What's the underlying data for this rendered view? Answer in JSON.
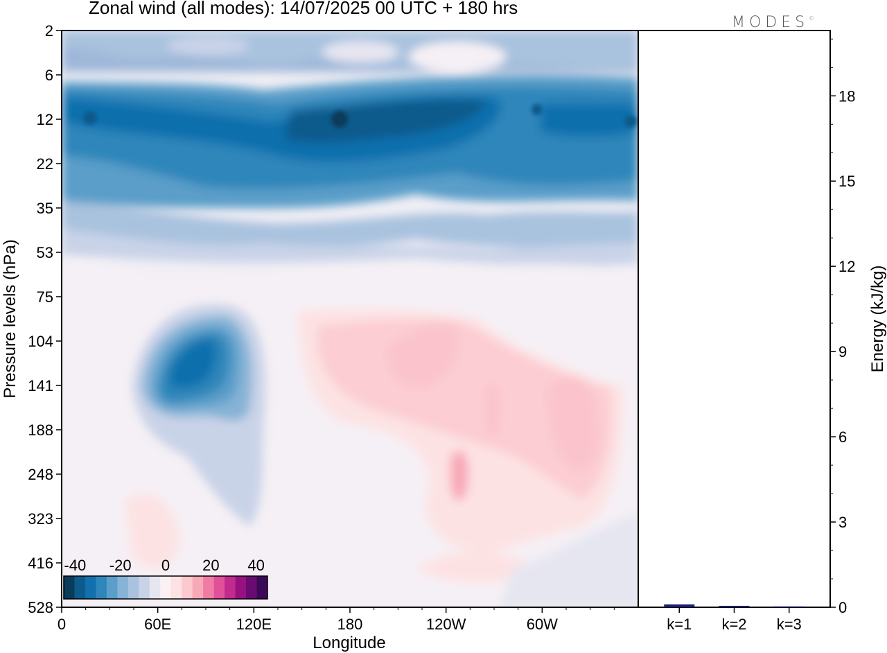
{
  "header": {
    "title": "Zonal wind (all modes):  14/07/2025  00 UTC  + 180 hrs",
    "logo_text": "MODES"
  },
  "chart_data": [
    {
      "type": "heatmap",
      "title": "Zonal wind (all modes):  14/07/2025  00 UTC  + 180 hrs",
      "xlabel": "Longitude",
      "ylabel": "Pressure levels (hPa)",
      "x_ticks": [
        "0",
        "60E",
        "120E",
        "180",
        "120W",
        "60W"
      ],
      "y_ticks": [
        "2",
        "6",
        "12",
        "22",
        "35",
        "53",
        "75",
        "104",
        "141",
        "188",
        "248",
        "323",
        "416",
        "528"
      ],
      "y_direction": "pressure increasing downward",
      "colorbar": {
        "tick_labels": [
          "-40",
          "-20",
          "0",
          "20",
          "40"
        ],
        "range": [
          -45,
          45
        ],
        "step": 5,
        "colors": [
          "#0b3b5a",
          "#0d5a8c",
          "#1170ad",
          "#2f86ba",
          "#5a9ec9",
          "#86b3d6",
          "#a9c2de",
          "#c9d3e8",
          "#e6e6f1",
          "#fbf0f3",
          "#fde2e3",
          "#fcc9cf",
          "#f8a9b8",
          "#f07ca5",
          "#e0509b",
          "#c02b8d",
          "#981181",
          "#6a0b73",
          "#3c0858"
        ]
      },
      "features": [
        {
          "desc": "easterly jet band upper levels",
          "lon": [
            0,
            360
          ],
          "p": [
            8,
            30
          ],
          "value": -30
        },
        {
          "desc": "easterly core",
          "lon": [
            130,
            300
          ],
          "p": [
            10,
            20
          ],
          "value": -38
        },
        {
          "desc": "easterly maximum near 75E-90E",
          "lon": [
            60,
            120
          ],
          "p": [
            100,
            170
          ],
          "value": -35
        },
        {
          "desc": "westerly maximum",
          "lon": [
            200,
            250
          ],
          "p": [
            100,
            160
          ],
          "value": 12
        },
        {
          "desc": "westerly maximum",
          "lon": [
            300,
            340
          ],
          "p": [
            110,
            250
          ],
          "value": 12
        }
      ]
    },
    {
      "type": "bar",
      "categories": [
        "k=1",
        "k=2",
        "k=3"
      ],
      "values": [
        0.1,
        0.05,
        0.03
      ],
      "ylabel": "Energy (kJ/kg)",
      "y_ticks": [
        "0",
        "3",
        "6",
        "9",
        "12",
        "15",
        "18"
      ],
      "ylim": [
        0,
        20.3
      ],
      "bar_color": "#1a1a7a"
    }
  ]
}
